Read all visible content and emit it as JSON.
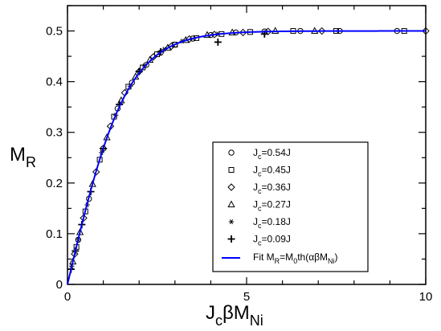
{
  "chart_data": {
    "type": "scatter",
    "xlabel": {
      "main": "J",
      "sub1": "c",
      "mid": "βM",
      "sub2": "Ni"
    },
    "ylabel": {
      "main": "M",
      "sub": "R"
    },
    "xlim": [
      0,
      10
    ],
    "ylim": [
      0,
      0.55
    ],
    "x_ticks": [
      0,
      5,
      10
    ],
    "x_tick_labels": [
      "0",
      "5",
      "10"
    ],
    "y_ticks": [
      0,
      0.1,
      0.2,
      0.3,
      0.4,
      0.5
    ],
    "y_tick_labels": [
      "0",
      "0.1",
      "0.2",
      "0.3",
      "0.4",
      "0.5"
    ],
    "legend_position": "lower-right",
    "fit": {
      "label": {
        "pre": "Fit M",
        "sub1": "R",
        "mid1": "=M",
        "sub2": "0",
        "mid2": "th(αβM",
        "sub3": "Ni",
        "post": ")"
      },
      "color": "#0000ff",
      "M0": 0.5,
      "alpha": 0.6
    },
    "series": [
      {
        "label": {
          "pre": "J",
          "sub": "c",
          "post": "=0.54J"
        },
        "marker": "circle",
        "x": [
          0.3,
          0.6,
          1.0,
          1.4,
          1.8,
          2.2,
          2.6,
          3.0,
          3.5,
          4.0,
          4.7,
          5.5,
          6.5,
          7.6,
          9.2
        ],
        "y": [
          0.088,
          0.169,
          0.268,
          0.347,
          0.398,
          0.433,
          0.457,
          0.473,
          0.485,
          0.492,
          0.497,
          0.499,
          0.5,
          0.5,
          0.5
        ]
      },
      {
        "label": {
          "pre": "J",
          "sub": "c",
          "post": "=0.45J"
        },
        "marker": "square",
        "x": [
          0.25,
          0.5,
          0.9,
          1.3,
          1.7,
          2.1,
          2.5,
          3.0,
          3.6,
          4.3,
          5.1,
          6.3,
          7.5,
          9.4
        ],
        "y": [
          0.074,
          0.144,
          0.246,
          0.331,
          0.39,
          0.428,
          0.454,
          0.473,
          0.486,
          0.494,
          0.498,
          0.5,
          0.5,
          0.5
        ]
      },
      {
        "label": {
          "pre": "J",
          "sub": "c",
          "post": "=0.36J"
        },
        "marker": "diamond",
        "x": [
          0.2,
          0.45,
          0.8,
          1.2,
          1.6,
          2.0,
          2.4,
          2.9,
          3.4,
          4.1,
          4.9,
          5.6,
          7.1,
          10.0
        ],
        "y": [
          0.06,
          0.131,
          0.222,
          0.312,
          0.378,
          0.42,
          0.449,
          0.47,
          0.484,
          0.493,
          0.497,
          0.499,
          0.5,
          0.5
        ]
      },
      {
        "label": {
          "pre": "J",
          "sub": "c",
          "post": "=0.27J"
        },
        "marker": "triangle",
        "x": [
          0.15,
          0.35,
          0.7,
          1.1,
          1.5,
          1.9,
          2.3,
          2.8,
          3.3,
          3.9,
          4.6,
          5.8,
          6.9
        ],
        "y": [
          0.045,
          0.103,
          0.198,
          0.29,
          0.363,
          0.41,
          0.443,
          0.467,
          0.482,
          0.492,
          0.497,
          0.5,
          0.5
        ]
      },
      {
        "label": {
          "pre": "J",
          "sub": "c",
          "post": "=0.18J"
        },
        "marker": "star",
        "x": [
          0.12,
          0.3,
          0.55,
          0.95,
          1.35,
          1.75,
          2.15,
          2.7,
          3.2,
          4.2
        ],
        "y": [
          0.036,
          0.089,
          0.157,
          0.26,
          0.334,
          0.391,
          0.431,
          0.464,
          0.48,
          0.494
        ]
      },
      {
        "label": {
          "pre": "J",
          "sub": "c",
          "post": "=0.09J"
        },
        "marker": "plus",
        "x": [
          0.1,
          0.22,
          0.4,
          0.65,
          1.0,
          1.45,
          2.0,
          2.6,
          4.2,
          5.5
        ],
        "y": [
          0.03,
          0.066,
          0.118,
          0.183,
          0.268,
          0.355,
          0.42,
          0.459,
          0.478,
          0.494
        ]
      }
    ]
  }
}
